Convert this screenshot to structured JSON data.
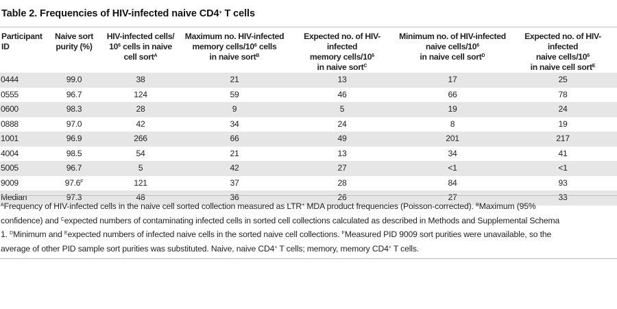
{
  "title": "Table 2. Frequencies of HIV-infected naive CD4",
  "title_sup": "+",
  "title_suffix": " T cells",
  "columns": [
    {
      "line1": "Participant",
      "line2": "ID",
      "line3": "",
      "line3_sup": ""
    },
    {
      "line1": "Naive sort",
      "line2": "purity (%)",
      "line3": "",
      "line3_sup": ""
    },
    {
      "line1": "HIV-infected cells/",
      "line2a": "10",
      "line2_sup": "6",
      "line2b": " cells in naive",
      "line3": "cell sort",
      "line3_sup": "A"
    },
    {
      "line1": "Maximum no. HIV-infected",
      "line2a": "memory cells/10",
      "line2_sup": "6",
      "line2b": " cells",
      "line3": "in naive sort",
      "line3_sup": "B"
    },
    {
      "line1": "Expected no. of HIV-infected",
      "line2a": "memory cells/10",
      "line2_sup": "6",
      "line2b": "",
      "line3": "in naive sort",
      "line3_sup": "C"
    },
    {
      "line1": "Minimum no. of HIV-infected",
      "line2a": "naive cells/10",
      "line2_sup": "6",
      "line2b": "",
      "line3": "in naive cell sort",
      "line3_sup": "D"
    },
    {
      "line1": "Expected no. of HIV-infected",
      "line2a": "naive cells/10",
      "line2_sup": "6",
      "line2b": "",
      "line3": "in naive cell sort",
      "line3_sup": "E"
    }
  ],
  "rows": [
    {
      "id": "0444",
      "purity": "99.0",
      "purity_sup": "",
      "infected": "38",
      "max_mem": "21",
      "exp_mem": "13",
      "min_naive": "17",
      "exp_naive": "25"
    },
    {
      "id": "0555",
      "purity": "96.7",
      "purity_sup": "",
      "infected": "124",
      "max_mem": "59",
      "exp_mem": "46",
      "min_naive": "66",
      "exp_naive": "78"
    },
    {
      "id": "0600",
      "purity": "98.3",
      "purity_sup": "",
      "infected": "28",
      "max_mem": "9",
      "exp_mem": "5",
      "min_naive": "19",
      "exp_naive": "24"
    },
    {
      "id": "0888",
      "purity": "97.0",
      "purity_sup": "",
      "infected": "42",
      "max_mem": "34",
      "exp_mem": "24",
      "min_naive": "8",
      "exp_naive": "19"
    },
    {
      "id": "1001",
      "purity": "96.9",
      "purity_sup": "",
      "infected": "266",
      "max_mem": "66",
      "exp_mem": "49",
      "min_naive": "201",
      "exp_naive": "217"
    },
    {
      "id": "4004",
      "purity": "98.5",
      "purity_sup": "",
      "infected": "54",
      "max_mem": "21",
      "exp_mem": "13",
      "min_naive": "34",
      "exp_naive": "41"
    },
    {
      "id": "5005",
      "purity": "96.7",
      "purity_sup": "",
      "infected": "5",
      "max_mem": "42",
      "exp_mem": "27",
      "min_naive": "<1",
      "exp_naive": "<1"
    },
    {
      "id": "9009",
      "purity": "97.6",
      "purity_sup": "F",
      "infected": "121",
      "max_mem": "37",
      "exp_mem": "28",
      "min_naive": "84",
      "exp_naive": "93"
    },
    {
      "id": "Median",
      "purity": "97.3",
      "purity_sup": "",
      "infected": "48",
      "max_mem": "36",
      "exp_mem": "26",
      "min_naive": "27",
      "exp_naive": "33"
    }
  ],
  "footnote": {
    "l1_sA": "A",
    "l1_a": "Frequency of HIV-infected cells in the naive cell sorted collection measured as LTR",
    "l1_sPlus": "+",
    "l1_b": " MDA product frequencies (Poisson-corrected). ",
    "l1_sB": "B",
    "l1_c": "Maximum (95%",
    "l2_a": "confidence) and ",
    "l2_sC": "C",
    "l2_b": "expected numbers of contaminating infected cells in sorted cell collections calculated as described in Methods and Supplemental Schema",
    "l3_a": "1. ",
    "l3_sD": "D",
    "l3_b": "Minimum and ",
    "l3_sE": "E",
    "l3_c": "expected numbers of infected naive cells in the sorted naive cell collections. ",
    "l3_sF": "F",
    "l3_d": "Measured PID 9009 sort purities were unavailable, so the",
    "l4_a": "average of other PID sample sort purities was substituted. Naive, naive CD4",
    "l4_sPlus": "+",
    "l4_b": " T cells; memory, memory CD4",
    "l4_sPlus2": "+",
    "l4_c": " T cells."
  },
  "colors": {
    "shade": "#e6e6e6",
    "rule": "#bdbdbd",
    "text": "#222222"
  }
}
